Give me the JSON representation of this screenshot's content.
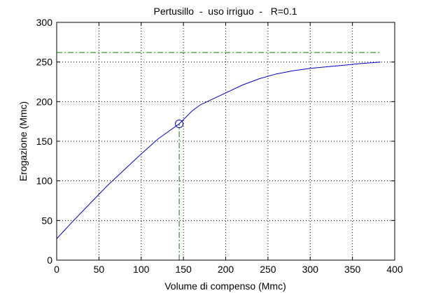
{
  "chart_data": {
    "type": "line",
    "title": "Pertusillo  -  uso irriguo  -   R=0.1",
    "xlabel": "Volume di compenso (Mmc)",
    "ylabel": "Erogazione (Mmc)",
    "xlim": [
      0,
      400
    ],
    "ylim": [
      0,
      300
    ],
    "xticks": [
      0,
      50,
      100,
      150,
      200,
      250,
      300,
      350,
      400
    ],
    "yticks": [
      0,
      50,
      100,
      150,
      200,
      250,
      300
    ],
    "grid": true,
    "series": [
      {
        "color": "#0000cc",
        "x": [
          0,
          20,
          40,
          60,
          80,
          100,
          120,
          145,
          160,
          170,
          180,
          200,
          220,
          240,
          260,
          280,
          300,
          320,
          340,
          360,
          383
        ],
        "y": [
          27,
          50,
          72,
          94,
          114,
          134,
          153,
          172,
          188,
          196,
          201,
          211,
          221,
          229,
          235,
          239,
          242,
          244,
          246,
          248,
          250
        ]
      }
    ],
    "marker": {
      "x": 145,
      "y": 172,
      "shape": "circle",
      "color": "#0000cc"
    },
    "reference_lines": [
      {
        "orientation": "horizontal",
        "value": 262,
        "x_range": [
          0,
          383
        ],
        "color": "#008000",
        "style": "dash-dot"
      },
      {
        "orientation": "vertical",
        "value": 145,
        "y_range": [
          0,
          172
        ],
        "color": "#008000",
        "style": "dash-dot"
      }
    ]
  }
}
